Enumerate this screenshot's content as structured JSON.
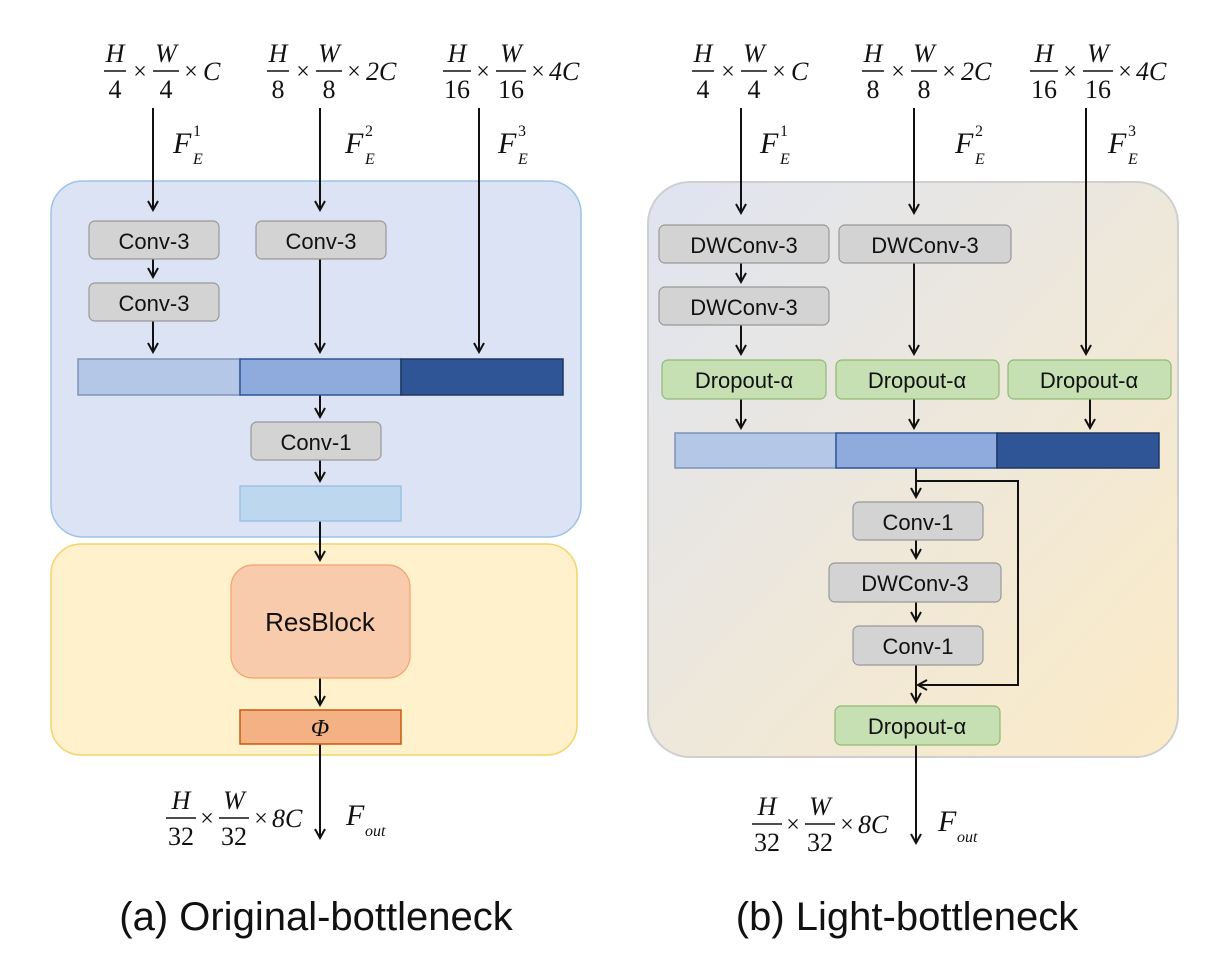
{
  "left": {
    "inputs": [
      {
        "h_num": "H",
        "h_den": "4",
        "w_num": "W",
        "w_den": "4",
        "channels": "C",
        "feature": "F",
        "sub": "E",
        "sup": "1"
      },
      {
        "h_num": "H",
        "h_den": "8",
        "w_num": "W",
        "w_den": "8",
        "channels": "2C",
        "feature": "F",
        "sub": "E",
        "sup": "2"
      },
      {
        "h_num": "H",
        "h_den": "16",
        "w_num": "W",
        "w_den": "16",
        "channels": "4C",
        "feature": "F",
        "sub": "E",
        "sup": "3"
      }
    ],
    "conv3_a": "Conv-3",
    "conv3_b": "Conv-3",
    "conv3_c": "Conv-3",
    "conv1": "Conv-1",
    "resblock": "ResBlock",
    "phi": "Φ",
    "output": {
      "h_num": "H",
      "h_den": "32",
      "w_num": "W",
      "w_den": "32",
      "channels": "8C",
      "feature": "F",
      "sub": "out"
    },
    "caption": "(a) Original-bottleneck"
  },
  "right": {
    "inputs": [
      {
        "h_num": "H",
        "h_den": "4",
        "w_num": "W",
        "w_den": "4",
        "channels": "C",
        "feature": "F",
        "sub": "E",
        "sup": "1"
      },
      {
        "h_num": "H",
        "h_den": "8",
        "w_num": "W",
        "w_den": "8",
        "channels": "2C",
        "feature": "F",
        "sub": "E",
        "sup": "2"
      },
      {
        "h_num": "H",
        "h_den": "16",
        "w_num": "W",
        "w_den": "16",
        "channels": "4C",
        "feature": "F",
        "sub": "E",
        "sup": "3"
      }
    ],
    "dwconv3_a": "DWConv-3",
    "dwconv3_b": "DWConv-3",
    "dwconv3_c": "DWConv-3",
    "dropout_1": "Dropout-α",
    "dropout_2": "Dropout-α",
    "dropout_3": "Dropout-α",
    "conv1_a": "Conv-1",
    "dwconv3_mid": "DWConv-3",
    "conv1_b": "Conv-1",
    "dropout_out": "Dropout-α",
    "output": {
      "h_num": "H",
      "h_den": "32",
      "w_num": "W",
      "w_den": "32",
      "channels": "8C",
      "feature": "F",
      "sub": "out"
    },
    "caption": "(b) Light-bottleneck"
  },
  "times": "×",
  "colors": {
    "blue_panel": "#dbe3f4",
    "blue_panel_border": "#9cc3e6",
    "yellow_panel": "#fff1cc",
    "yellow_panel_border": "#f4d46c",
    "gray_box": "#d3d3d3",
    "green_box": "#c6e0b4",
    "feat_light": "#b4c7e7",
    "feat_mid": "#8faadc",
    "feat_dark": "#2f5597",
    "feat_out": "#bdd7ee",
    "resblock": "#f8cbad",
    "phi": "#f4b183"
  }
}
